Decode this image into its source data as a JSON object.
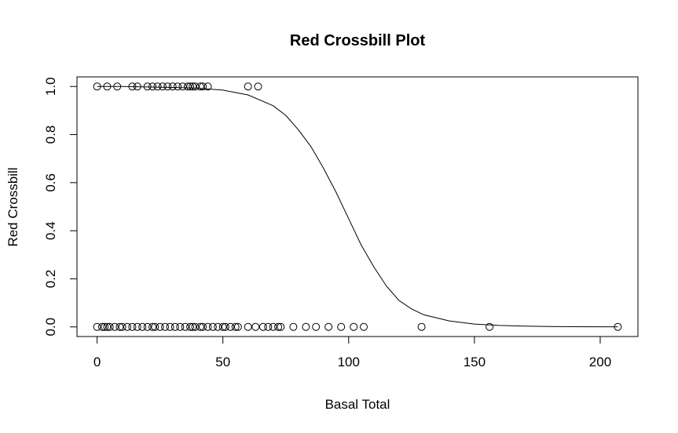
{
  "chart_data": {
    "type": "scatter",
    "title": "Red Crossbill Plot",
    "xlabel": "Basal Total",
    "ylabel": "Red Crossbill",
    "xlim": [
      -8,
      215
    ],
    "ylim": [
      -0.04,
      1.04
    ],
    "x_ticks": [
      0,
      50,
      100,
      150,
      200
    ],
    "x_tick_labels": [
      "0",
      "50",
      "100",
      "150",
      "200"
    ],
    "y_ticks": [
      0.0,
      0.2,
      0.4,
      0.6,
      0.8,
      1.0
    ],
    "y_tick_labels": [
      "0.0",
      "0.2",
      "0.4",
      "0.6",
      "0.8",
      "1.0"
    ],
    "grid": false,
    "legend": "none",
    "series": [
      {
        "kind": "points",
        "marker": "open-circle",
        "x": [
          0,
          4,
          8,
          14,
          16,
          20,
          22,
          24,
          26,
          28,
          30,
          32,
          34,
          36,
          37,
          38,
          39,
          41,
          42,
          44,
          60,
          64,
          0,
          2,
          3,
          4,
          5,
          7,
          9,
          10,
          12,
          14,
          16,
          18,
          20,
          22,
          23,
          25,
          27,
          29,
          31,
          33,
          35,
          37,
          38,
          39,
          41,
          42,
          44,
          46,
          48,
          50,
          51,
          53,
          55,
          56,
          60,
          63,
          66,
          68,
          70,
          72,
          73,
          78,
          83,
          87,
          92,
          97,
          102,
          106,
          129,
          156,
          207
        ],
        "y": [
          1,
          1,
          1,
          1,
          1,
          1,
          1,
          1,
          1,
          1,
          1,
          1,
          1,
          1,
          1,
          1,
          1,
          1,
          1,
          1,
          1,
          1,
          0,
          0,
          0,
          0,
          0,
          0,
          0,
          0,
          0,
          0,
          0,
          0,
          0,
          0,
          0,
          0,
          0,
          0,
          0,
          0,
          0,
          0,
          0,
          0,
          0,
          0,
          0,
          0,
          0,
          0,
          0,
          0,
          0,
          0,
          0,
          0,
          0,
          0,
          0,
          0,
          0,
          0,
          0,
          0,
          0,
          0,
          0,
          0,
          0,
          0,
          0
        ]
      },
      {
        "kind": "curve",
        "x": [
          0,
          10,
          20,
          30,
          40,
          50,
          60,
          70,
          75,
          80,
          85,
          90,
          95,
          100,
          105,
          110,
          115,
          120,
          125,
          130,
          140,
          150,
          160,
          170,
          180,
          190,
          200,
          207
        ],
        "y": [
          1.0,
          1.0,
          0.998,
          0.996,
          0.993,
          0.985,
          0.965,
          0.92,
          0.88,
          0.82,
          0.75,
          0.66,
          0.56,
          0.45,
          0.34,
          0.25,
          0.17,
          0.11,
          0.075,
          0.05,
          0.025,
          0.012,
          0.006,
          0.003,
          0.0015,
          0.0008,
          0.0004,
          0.0003
        ]
      }
    ]
  }
}
